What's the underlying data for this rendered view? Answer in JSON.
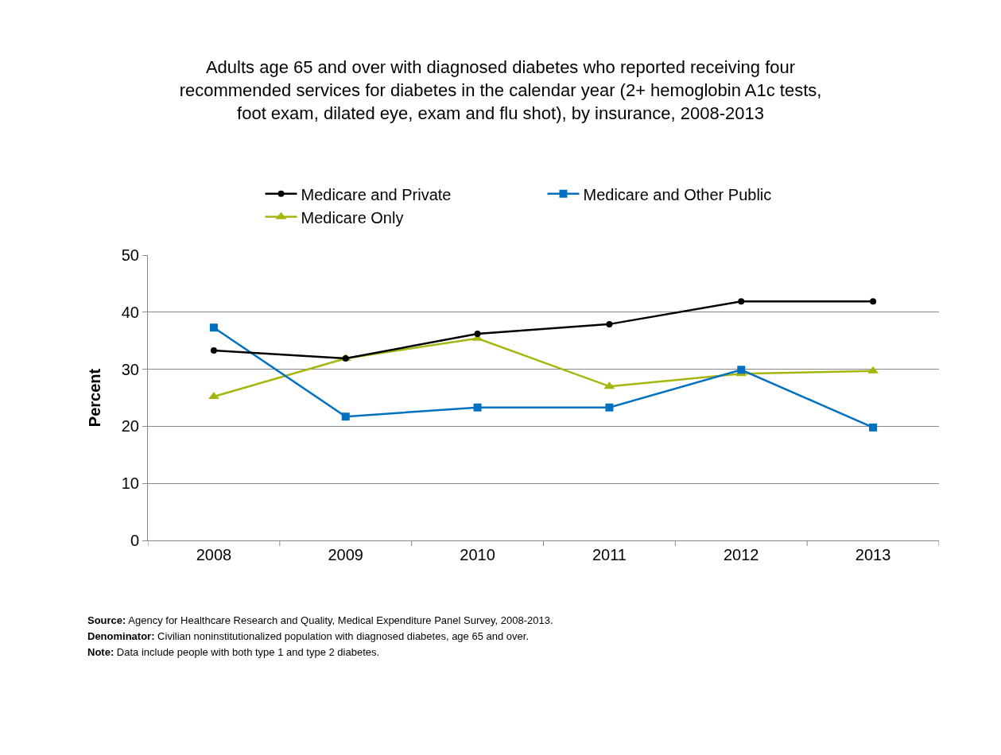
{
  "chart_data": {
    "type": "line",
    "title": "Adults age 65 and over with diagnosed diabetes who reported receiving four\nrecommended services for diabetes in the calendar year (2+ hemoglobin A1c tests,\nfoot exam, dilated eye, exam and flu shot), by insurance, 2008-2013",
    "ylabel": "Percent",
    "categories": [
      "2008",
      "2009",
      "2010",
      "2011",
      "2012",
      "2013"
    ],
    "series": [
      {
        "name": "Medicare and Private",
        "color": "#000000",
        "marker": "circle",
        "values": [
          33.3,
          31.9,
          36.2,
          37.9,
          41.9,
          41.9
        ]
      },
      {
        "name": "Medicare and Other Public",
        "color": "#0070c0",
        "marker": "square",
        "values": [
          37.3,
          21.7,
          23.3,
          23.3,
          29.9,
          19.8
        ]
      },
      {
        "name": "Medicare Only",
        "color": "#a5b70f",
        "marker": "triangle",
        "values": [
          25.2,
          31.9,
          35.4,
          27.0,
          29.2,
          29.7
        ]
      }
    ],
    "ylim": [
      0,
      50
    ],
    "yticks": [
      0,
      10,
      20,
      30,
      40,
      50
    ],
    "grid": "y",
    "legend": "top",
    "annotations": [
      "Source: Agency for Healthcare Research and Quality, Medical Expenditure Panel Survey, 2008-2013.",
      "Denominator: Civilian noninstitutionalized population with diagnosed diabetes, age 65 and over.",
      "Note: Data include people with both type 1 and type 2 diabetes."
    ]
  }
}
